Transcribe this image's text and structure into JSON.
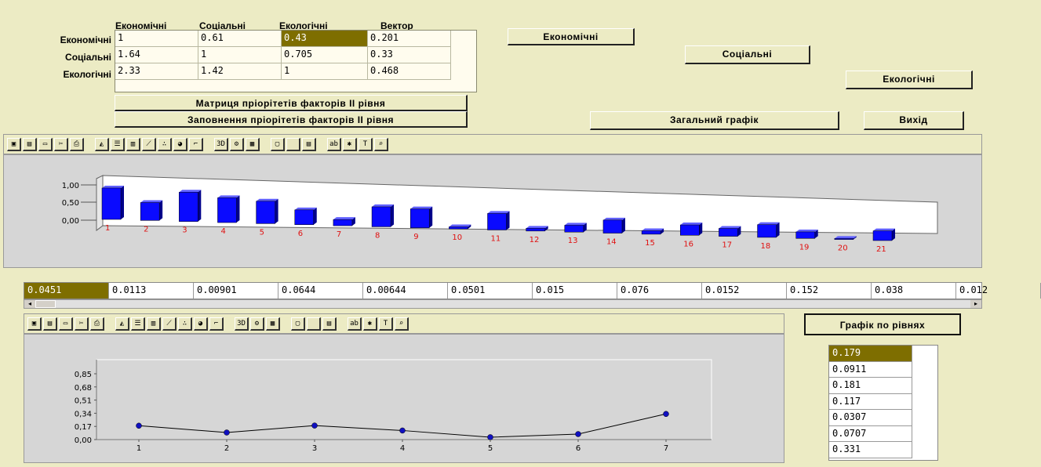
{
  "matrix": {
    "col_headers": [
      "Економічні",
      "Соціальні",
      "Екологічні",
      "Вектор"
    ],
    "row_labels": [
      "Економічні",
      "Соціальні",
      "Екологічні"
    ],
    "rows": [
      [
        "1",
        "0.61",
        "0.43",
        "0.201"
      ],
      [
        "1.64",
        "1",
        "0.705",
        "0.33"
      ],
      [
        "2.33",
        "1.42",
        "1",
        "0.468"
      ]
    ]
  },
  "buttons": {
    "matrix_priorities": "Матриця пріорітетів факторів ІІ рівня",
    "fill_priorities": "Заповнення пріорітетів факторів ІІ рівня",
    "economic": "Економічні",
    "social": "Соціальні",
    "ecological": "Екологічні",
    "general_chart": "Загальний графік",
    "exit": "Вихід",
    "level_chart": "Графік по рівнях"
  },
  "toolbar_icons": [
    "save-icon",
    "open-icon",
    "copy-icon",
    "cut-icon",
    "print-icon",
    "area-chart-icon",
    "hbar-chart-icon",
    "bar-chart-icon",
    "line-chart-icon",
    "scatter-chart-icon",
    "pie-chart-icon",
    "step-chart-icon",
    "3d-icon",
    "properties-icon",
    "gallery-icon",
    "data-icon",
    "blank-icon",
    "grid-icon",
    "text-icon",
    "tools-icon",
    "title-icon",
    "zoom-icon"
  ],
  "vector_strip": [
    "0.0451",
    "0.0113",
    "0.00901",
    "0.0644",
    "0.00644",
    "0.0501",
    "0.015",
    "0.076",
    "0.0152",
    "0.152",
    "0.038",
    "0.012"
  ],
  "level_values": [
    "0.179",
    "0.0911",
    "0.181",
    "0.117",
    "0.0307",
    "0.0707",
    "0.331"
  ],
  "colors": {
    "selected_cell": "#7E6E00",
    "bar": "#0A0AFF",
    "tick_labels": "#E01010",
    "window_bg": "#ECEBC4",
    "chart_bg": "#D6D6D6"
  },
  "chart_data": [
    {
      "type": "bar",
      "categories": [
        "1",
        "2",
        "3",
        "4",
        "5",
        "6",
        "7",
        "8",
        "9",
        "10",
        "11",
        "12",
        "13",
        "14",
        "15",
        "16",
        "17",
        "18",
        "19",
        "20",
        "21"
      ],
      "values": [
        0.91,
        0.52,
        0.85,
        0.72,
        0.65,
        0.43,
        0.18,
        0.58,
        0.55,
        0.06,
        0.48,
        0.08,
        0.2,
        0.38,
        0.1,
        0.3,
        0.23,
        0.37,
        0.19,
        0.03,
        0.28
      ],
      "y_ticks": [
        "1,00",
        "0,50",
        "0,00"
      ],
      "ylim": [
        0,
        1.0
      ],
      "grid": false
    },
    {
      "type": "line",
      "categories": [
        "1",
        "2",
        "3",
        "4",
        "5",
        "6",
        "7"
      ],
      "values": [
        0.179,
        0.0911,
        0.181,
        0.117,
        0.0307,
        0.0707,
        0.331
      ],
      "y_ticks": [
        "0,85",
        "0,68",
        "0,51",
        "0,34",
        "0,17",
        "0,00"
      ],
      "ylim": [
        0,
        0.85
      ],
      "grid": false
    }
  ]
}
